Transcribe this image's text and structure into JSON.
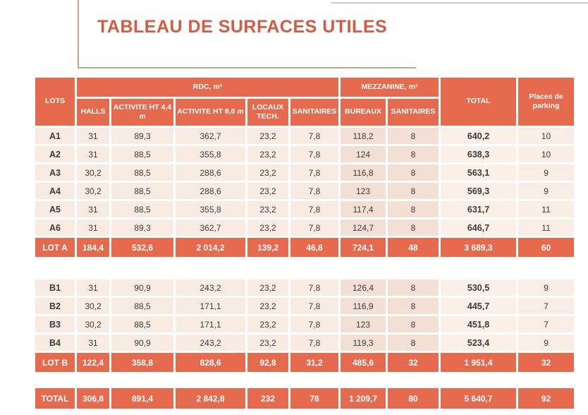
{
  "title": "TABLEAU DE SURFACES UTILES",
  "colors": {
    "accent_salmon": "#e66a4e",
    "title_text": "#d65a42",
    "row_light": "#f8ebe2",
    "row_mezzanine": "#f4dfd4",
    "row_total_column": "#faf0e8"
  },
  "table": {
    "groups": {
      "lots": "LOTS",
      "rdc": "RDC, m²",
      "mezzanine": "MEZZANINE, m²",
      "total": "TOTAL",
      "parking": "Places de parking"
    },
    "sub_headers": [
      "HALLS",
      "ACTIVITE HT 4,4 m",
      "ACTIVITE HT 8,0 m",
      "LOCAUX TECH.",
      "SANITAIRES",
      "BUREAUX",
      "SANITAIRES"
    ],
    "blocks": [
      {
        "name": "A",
        "rows": [
          {
            "lot": "A1",
            "values": [
              "31",
              "89,3",
              "362,7",
              "23,2",
              "7,8",
              "118,2",
              "8",
              "640,2",
              "10"
            ]
          },
          {
            "lot": "A2",
            "values": [
              "31",
              "88,5",
              "355,8",
              "23,2",
              "7,8",
              "124",
              "8",
              "638,3",
              "10"
            ]
          },
          {
            "lot": "A3",
            "values": [
              "30,2",
              "88,5",
              "288,6",
              "23,2",
              "7,8",
              "116,8",
              "8",
              "563,1",
              "9"
            ]
          },
          {
            "lot": "A4",
            "values": [
              "30,2",
              "88,5",
              "288,6",
              "23,2",
              "7,8",
              "123",
              "8",
              "569,3",
              "9"
            ]
          },
          {
            "lot": "A5",
            "values": [
              "31",
              "88,5",
              "355,8",
              "23,2",
              "7,8",
              "117,4",
              "8",
              "631,7",
              "11"
            ]
          },
          {
            "lot": "A6",
            "values": [
              "31",
              "89,3",
              "362,7",
              "23,2",
              "7,8",
              "124,7",
              "8",
              "646,7",
              "11"
            ]
          }
        ],
        "summary": {
          "lot": "LOT A",
          "values": [
            "184,4",
            "532,6",
            "2 014,2",
            "139,2",
            "46,8",
            "724,1",
            "48",
            "3 689,3",
            "60"
          ]
        }
      },
      {
        "name": "B",
        "rows": [
          {
            "lot": "B1",
            "values": [
              "31",
              "90,9",
              "243,2",
              "23,2",
              "7,8",
              "126,4",
              "8",
              "530,5",
              "9"
            ]
          },
          {
            "lot": "B2",
            "values": [
              "30,2",
              "88,5",
              "171,1",
              "23,2",
              "7,8",
              "116,9",
              "8",
              "445,7",
              "7"
            ]
          },
          {
            "lot": "B3",
            "values": [
              "30,2",
              "88,5",
              "171,1",
              "23,2",
              "7,8",
              "123",
              "8",
              "451,8",
              "7"
            ]
          },
          {
            "lot": "B4",
            "values": [
              "31",
              "90,9",
              "243,2",
              "23,2",
              "7,8",
              "119,3",
              "8",
              "523,4",
              "9"
            ]
          }
        ],
        "summary": {
          "lot": "LOT B",
          "values": [
            "122,4",
            "358,8",
            "828,6",
            "92,8",
            "31,2",
            "485,6",
            "32",
            "1 951,4",
            "32"
          ]
        }
      }
    ],
    "grand_total": {
      "lot": "TOTAL",
      "values": [
        "306,8",
        "891,4",
        "2 842,8",
        "232",
        "78",
        "1 209,7",
        "80",
        "5 640,7",
        "92"
      ]
    }
  }
}
